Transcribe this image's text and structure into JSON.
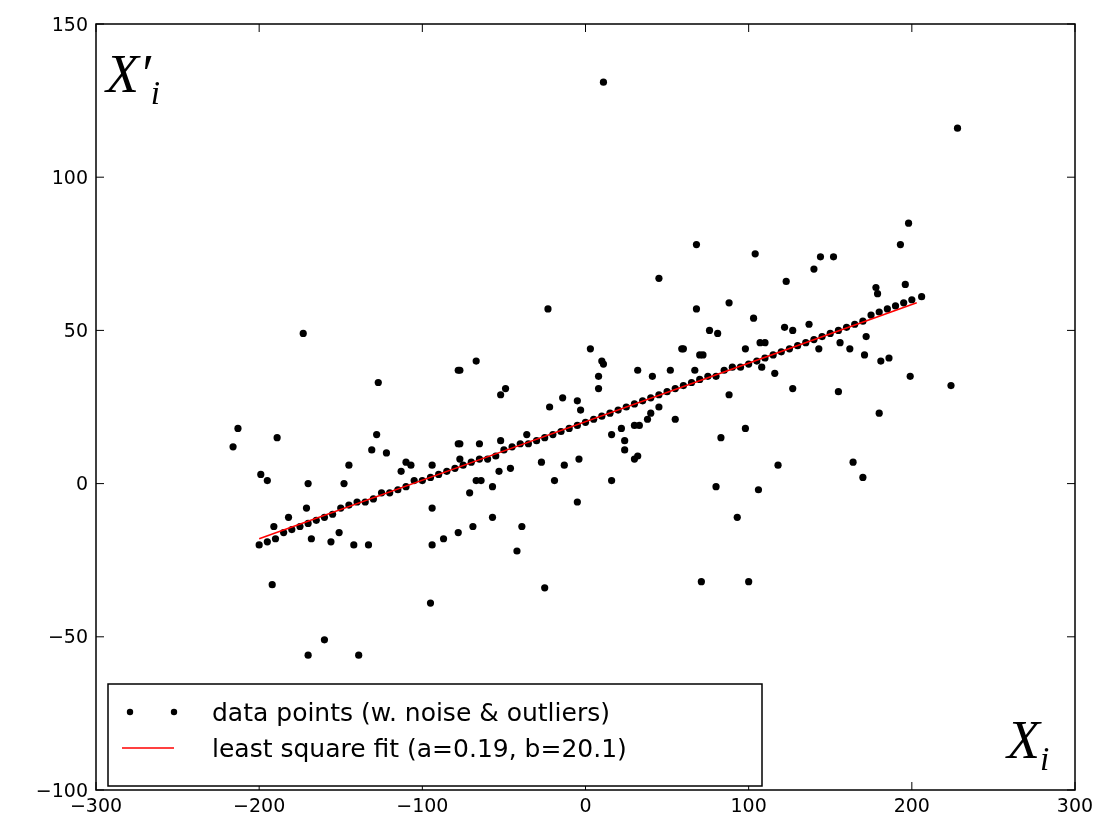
{
  "chart_data": {
    "type": "scatter",
    "xlabel": "X$_{i}$",
    "ylabel": "X′$_{i}$",
    "xlim": [
      -300,
      300
    ],
    "ylim": [
      -100,
      150
    ],
    "xticks": [
      {
        "value": -300,
        "label": "−300"
      },
      {
        "value": -200,
        "label": "−200"
      },
      {
        "value": -100,
        "label": "−100"
      },
      0,
      100,
      200,
      300
    ],
    "yticks": [
      {
        "value": -100,
        "label": "−100"
      },
      {
        "value": -50,
        "label": "−50"
      },
      0,
      50,
      100,
      150
    ],
    "grid": false,
    "legend": "bottom left",
    "series": [
      {
        "name": "data points (w. noise & outliers)",
        "color": "#000000",
        "marker": "circle",
        "x": [
          -216,
          -213,
          -199,
          -195,
          -189,
          -192,
          -173,
          -170,
          -171,
          -170,
          -160,
          -139,
          -145,
          -148,
          -142,
          -127,
          -128,
          -131,
          -133,
          -110,
          -95,
          -94,
          -87,
          -78,
          -94,
          -78,
          -78,
          -94,
          -122,
          -113,
          -107,
          -182,
          -191,
          -168,
          -156,
          -151,
          -23,
          -77,
          -67,
          -52,
          -49,
          3,
          10,
          11,
          8,
          8,
          32,
          41,
          52,
          60,
          45,
          68,
          -14,
          -22,
          -5,
          -3,
          16,
          22,
          24,
          24,
          30,
          32,
          30,
          33,
          38,
          40,
          45,
          55,
          16,
          -5,
          -19,
          -13,
          -4,
          -27,
          -25,
          -42,
          -39,
          -57,
          -69,
          -71,
          -57,
          -53,
          -46,
          -77,
          -65,
          -52,
          -36,
          -67,
          -64,
          -77,
          68,
          104,
          140,
          144,
          152,
          123,
          198,
          193,
          196,
          178,
          179,
          206,
          88,
          76,
          81,
          103,
          122,
          127,
          137,
          59,
          70,
          72,
          98,
          107,
          110,
          67,
          88,
          108,
          116,
          127,
          143,
          155,
          156,
          162,
          172,
          171,
          181,
          186,
          199,
          224,
          180,
          83,
          98,
          118,
          164,
          170,
          80,
          106,
          93,
          71,
          100,
          11,
          228,
          -200,
          -195,
          -190,
          -185,
          -180,
          -175,
          -170,
          -165,
          -160,
          -155,
          -150,
          -145,
          -140,
          -135,
          -130,
          -125,
          -120,
          -115,
          -110,
          -105,
          -100,
          -95,
          -90,
          -85,
          -80,
          -75,
          -70,
          -65,
          -60,
          -55,
          -50,
          -45,
          -40,
          -35,
          -30,
          -25,
          -20,
          -15,
          -10,
          -5,
          0,
          5,
          10,
          15,
          20,
          25,
          30,
          35,
          40,
          45,
          50,
          55,
          60,
          65,
          70,
          75,
          80,
          85,
          90,
          95,
          100,
          105,
          110,
          115,
          120,
          125,
          130,
          135,
          140,
          145,
          150,
          155,
          160,
          165,
          170,
          175,
          180,
          185,
          190,
          195,
          200
        ],
        "values": [
          12,
          18,
          3,
          1,
          15,
          -33,
          49,
          0,
          -8,
          -56,
          -51,
          -56,
          6,
          0,
          -20,
          33,
          16,
          11,
          -20,
          7,
          -39,
          -20,
          -18,
          -16,
          -8,
          37,
          13,
          6,
          10,
          4,
          6,
          -11,
          -14,
          -18,
          -19,
          -16,
          57,
          37,
          40,
          29,
          31,
          44,
          40,
          39,
          35,
          31,
          37,
          35,
          37,
          44,
          67,
          57,
          28,
          25,
          27,
          24,
          16,
          18,
          14,
          11,
          8,
          9,
          19,
          19,
          21,
          23,
          25,
          21,
          1,
          -6,
          1,
          6,
          8,
          7,
          -34,
          -22,
          -14,
          -11,
          -14,
          -3,
          -1,
          4,
          5,
          13,
          13,
          14,
          16,
          1,
          1,
          8,
          78,
          75,
          70,
          74,
          74,
          66,
          85,
          78,
          65,
          64,
          62,
          61,
          59,
          50,
          49,
          54,
          51,
          50,
          52,
          44,
          42,
          42,
          44,
          46,
          46,
          37,
          29,
          38,
          36,
          31,
          44,
          30,
          46,
          44,
          48,
          42,
          40,
          41,
          35,
          32,
          23,
          15,
          18,
          6,
          7,
          2,
          -1,
          -2,
          -11,
          -32,
          -32,
          131,
          116,
          -20,
          -19,
          -18,
          -16,
          -15,
          -14,
          -13,
          -12,
          -11,
          -10,
          -8,
          -7,
          -6,
          -6,
          -5,
          -3,
          -3,
          -2,
          -1,
          1,
          1,
          2,
          3,
          4,
          5,
          6,
          7,
          8,
          8,
          9,
          11,
          12,
          13,
          13,
          14,
          15,
          16,
          17,
          18,
          19,
          20,
          21,
          22,
          23,
          24,
          25,
          26,
          27,
          28,
          29,
          30,
          31,
          32,
          33,
          34,
          35,
          35,
          37,
          38,
          38,
          39,
          40,
          41,
          42,
          43,
          44,
          45,
          46,
          47,
          48,
          49,
          50,
          51,
          52,
          53,
          55,
          56,
          57,
          58,
          59,
          60
        ]
      },
      {
        "name": "least square fit (a=0.19, b=20.1)",
        "type": "line",
        "color": "#ff0000",
        "x": [
          -200,
          203
        ],
        "values": [
          -18,
          59
        ]
      }
    ]
  }
}
